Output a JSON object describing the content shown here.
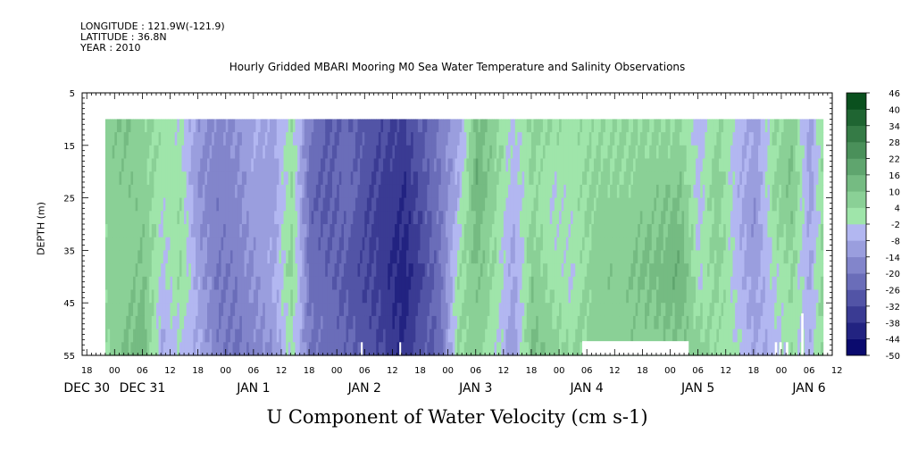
{
  "header": {
    "longitude": "LONGITUDE : 121.9W(-121.9)",
    "latitude": "LATITUDE : 36.8N",
    "year": "YEAR : 2010"
  },
  "chart_data": {
    "type": "heatmap",
    "title": "Hourly Gridded MBARI Mooring M0 Sea Water Temperature and Salinity Observations",
    "xlabel": "U Component of Water Velocity (cm s-1)",
    "ylabel": "DEPTH (m)",
    "x_range_hours": [
      -7,
      155
    ],
    "data_x_range_hours": [
      -2,
      153
    ],
    "y_range": [
      5,
      55
    ],
    "y_inverted": true,
    "data_depth_range": [
      10,
      55
    ],
    "y_ticks": [
      5,
      15,
      25,
      35,
      45,
      55
    ],
    "x_hour_ticks": [
      {
        "h": -6,
        "label": "18"
      },
      {
        "h": 0,
        "label": "00"
      },
      {
        "h": 6,
        "label": "06"
      },
      {
        "h": 12,
        "label": "12"
      },
      {
        "h": 18,
        "label": "18"
      },
      {
        "h": 24,
        "label": "00"
      },
      {
        "h": 30,
        "label": "06"
      },
      {
        "h": 36,
        "label": "12"
      },
      {
        "h": 42,
        "label": "18"
      },
      {
        "h": 48,
        "label": "00"
      },
      {
        "h": 54,
        "label": "06"
      },
      {
        "h": 60,
        "label": "12"
      },
      {
        "h": 66,
        "label": "18"
      },
      {
        "h": 72,
        "label": "00"
      },
      {
        "h": 78,
        "label": "06"
      },
      {
        "h": 84,
        "label": "12"
      },
      {
        "h": 90,
        "label": "18"
      },
      {
        "h": 96,
        "label": "00"
      },
      {
        "h": 102,
        "label": "06"
      },
      {
        "h": 108,
        "label": "12"
      },
      {
        "h": 114,
        "label": "18"
      },
      {
        "h": 120,
        "label": "00"
      },
      {
        "h": 126,
        "label": "06"
      },
      {
        "h": 132,
        "label": "12"
      },
      {
        "h": 138,
        "label": "18"
      },
      {
        "h": 144,
        "label": "00"
      },
      {
        "h": 150,
        "label": "06"
      },
      {
        "h": 156,
        "label": "12"
      }
    ],
    "x_date_labels": [
      {
        "h": -6,
        "label": "DEC 30"
      },
      {
        "h": 6,
        "label": "DEC 31"
      },
      {
        "h": 30,
        "label": "JAN  1"
      },
      {
        "h": 54,
        "label": "JAN  2"
      },
      {
        "h": 78,
        "label": "JAN  3"
      },
      {
        "h": 102,
        "label": "JAN  4"
      },
      {
        "h": 126,
        "label": "JAN  5"
      },
      {
        "h": 150,
        "label": "JAN  6"
      }
    ],
    "colorbar": {
      "levels": [
        -50,
        -44,
        -38,
        -32,
        -26,
        -20,
        -14,
        -8,
        -2,
        4,
        10,
        16,
        22,
        28,
        34,
        40,
        46
      ],
      "labels": [
        "46",
        "40",
        "34",
        "28",
        "22",
        "16",
        "10",
        "4",
        "-2",
        "-8",
        "-14",
        "-20",
        "-26",
        "-32",
        "-38",
        "-44",
        "-50"
      ]
    },
    "column_profiles": [
      {
        "h": -2,
        "v": [
          8,
          6,
          6,
          4
        ]
      },
      {
        "h": 2,
        "v": [
          10,
          8,
          6,
          12
        ]
      },
      {
        "h": 6,
        "v": [
          6,
          8,
          10,
          14
        ]
      },
      {
        "h": 10,
        "v": [
          2,
          0,
          -4,
          -8
        ]
      },
      {
        "h": 14,
        "v": [
          -2,
          2,
          4,
          -4
        ]
      },
      {
        "h": 18,
        "v": [
          -12,
          -14,
          -10,
          -8
        ]
      },
      {
        "h": 22,
        "v": [
          -16,
          -18,
          -20,
          -18
        ]
      },
      {
        "h": 26,
        "v": [
          -14,
          -16,
          -18,
          -22
        ]
      },
      {
        "h": 30,
        "v": [
          -8,
          -10,
          -14,
          -16
        ]
      },
      {
        "h": 34,
        "v": [
          -10,
          -12,
          -8,
          -14
        ]
      },
      {
        "h": 38,
        "v": [
          2,
          4,
          6,
          0
        ]
      },
      {
        "h": 42,
        "v": [
          -20,
          -24,
          -22,
          -20
        ]
      },
      {
        "h": 46,
        "v": [
          -26,
          -28,
          -24,
          -22
        ]
      },
      {
        "h": 50,
        "v": [
          -24,
          -22,
          -28,
          -24
        ]
      },
      {
        "h": 54,
        "v": [
          -28,
          -30,
          -32,
          -28
        ]
      },
      {
        "h": 58,
        "v": [
          -30,
          -34,
          -36,
          -32
        ]
      },
      {
        "h": 62,
        "v": [
          -34,
          -38,
          -42,
          -38
        ]
      },
      {
        "h": 66,
        "v": [
          -26,
          -30,
          -32,
          -28
        ]
      },
      {
        "h": 70,
        "v": [
          -18,
          -20,
          -22,
          -24
        ]
      },
      {
        "h": 74,
        "v": [
          -12,
          -6,
          2,
          4
        ]
      },
      {
        "h": 78,
        "v": [
          12,
          16,
          10,
          6
        ]
      },
      {
        "h": 82,
        "v": [
          8,
          4,
          2,
          0
        ]
      },
      {
        "h": 86,
        "v": [
          -4,
          -6,
          -10,
          -12
        ]
      },
      {
        "h": 90,
        "v": [
          6,
          4,
          8,
          12
        ]
      },
      {
        "h": 94,
        "v": [
          4,
          -2,
          2,
          8
        ]
      },
      {
        "h": 98,
        "v": [
          2,
          0,
          -2,
          4
        ]
      },
      {
        "h": 104,
        "v": [
          3,
          6,
          8,
          6
        ]
      },
      {
        "h": 110,
        "v": [
          4,
          6,
          8,
          8
        ]
      },
      {
        "h": 116,
        "v": [
          4,
          8,
          12,
          6
        ]
      },
      {
        "h": 122,
        "v": [
          4,
          10,
          16,
          8
        ]
      },
      {
        "h": 126,
        "v": [
          -6,
          -4,
          -2,
          8
        ]
      },
      {
        "h": 130,
        "v": [
          4,
          8,
          6,
          2
        ]
      },
      {
        "h": 134,
        "v": [
          -2,
          -6,
          -4,
          0
        ]
      },
      {
        "h": 138,
        "v": [
          -10,
          -14,
          -12,
          -8
        ]
      },
      {
        "h": 142,
        "v": [
          2,
          4,
          -2,
          -6
        ]
      },
      {
        "h": 146,
        "v": [
          8,
          10,
          4,
          2
        ]
      },
      {
        "h": 150,
        "v": [
          -12,
          -10,
          -8,
          -6
        ]
      },
      {
        "h": 153,
        "v": [
          6,
          4,
          8,
          6
        ]
      }
    ]
  }
}
